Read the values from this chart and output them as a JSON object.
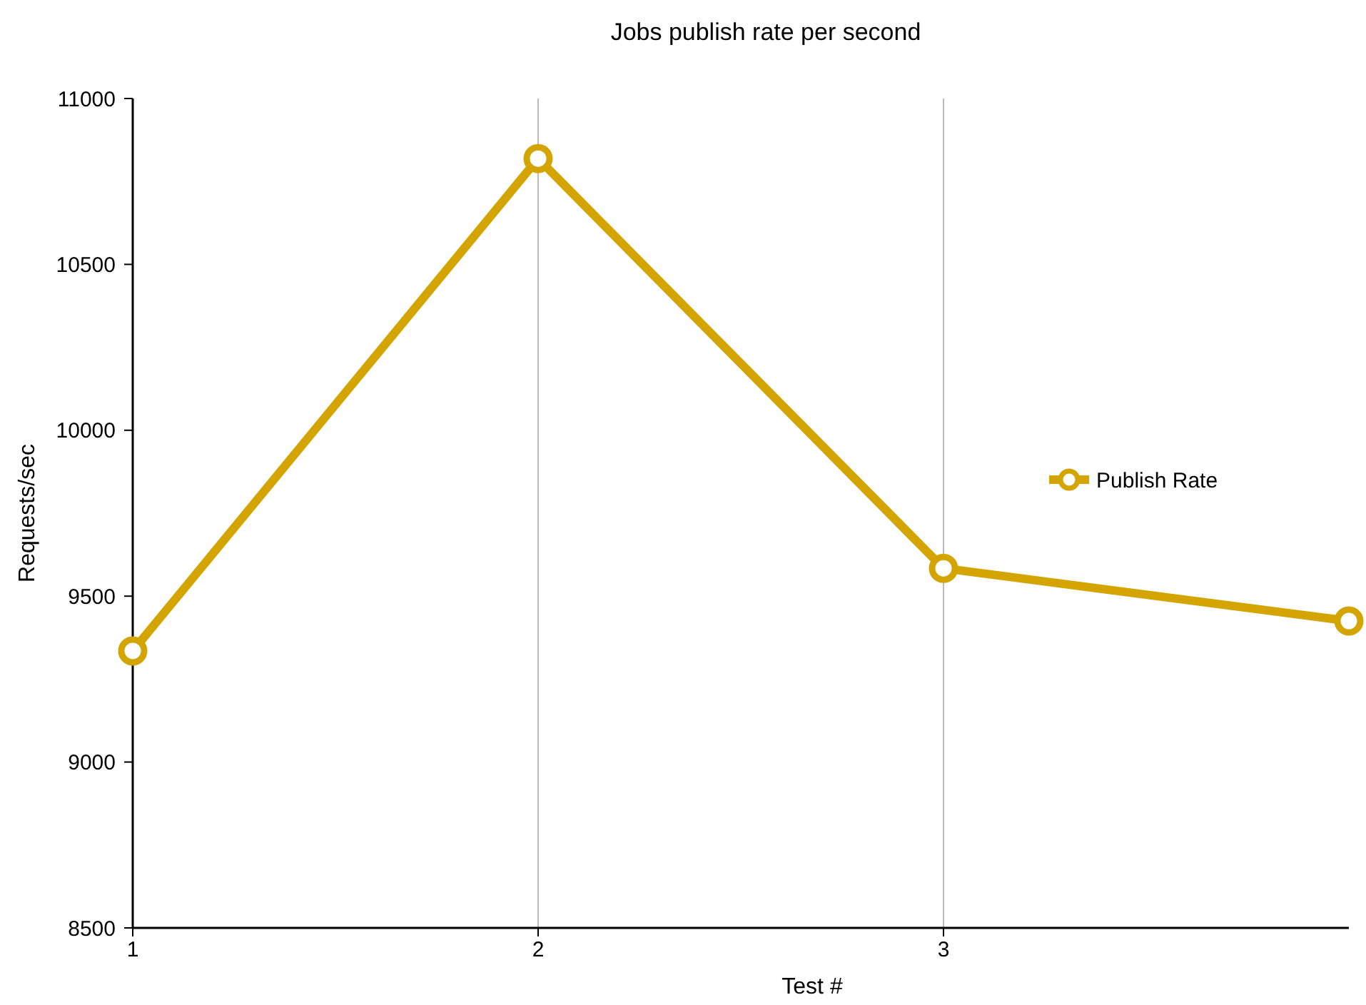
{
  "chart_data": {
    "type": "line",
    "title": "Jobs publish rate per second",
    "xlabel": "Test #",
    "ylabel": "Requests/sec",
    "x": [
      1,
      2,
      3,
      4
    ],
    "series": [
      {
        "name": "Publish Rate",
        "color": "#d4a500",
        "values": [
          9335,
          10819,
          9584,
          9425
        ]
      }
    ],
    "xlim": [
      1,
      4
    ],
    "xticks": [
      1,
      2,
      3
    ],
    "ylim": [
      8500,
      11000
    ],
    "yticks": [
      8500,
      9000,
      9500,
      10000,
      10500,
      11000
    ],
    "grid": "x",
    "legend": "right",
    "marker": "circle",
    "line_style": "solid"
  }
}
